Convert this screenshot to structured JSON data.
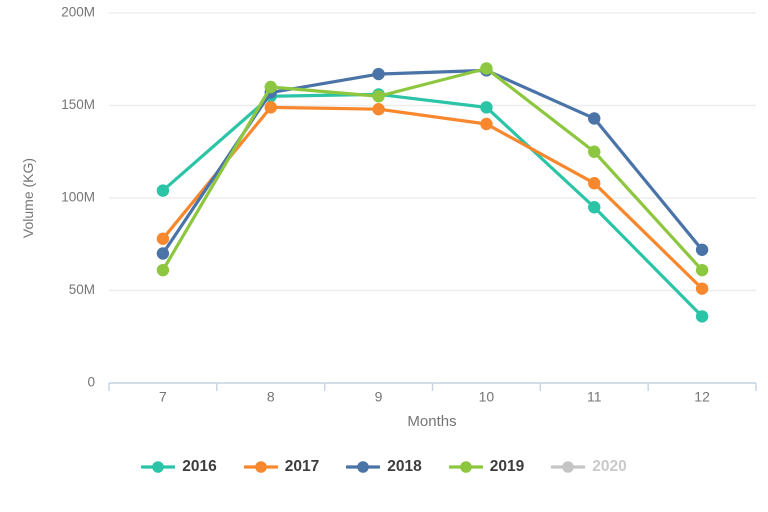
{
  "chart_data": {
    "type": "line",
    "title": "",
    "xlabel": "Months",
    "ylabel": "Volume (KG)",
    "categories": [
      "7",
      "8",
      "9",
      "10",
      "11",
      "12"
    ],
    "unit": "M",
    "ylim_millions": [
      0,
      200
    ],
    "grid": true,
    "legend_position": "bottom",
    "y_ticks": [
      {
        "value": 0,
        "label": "0"
      },
      {
        "value": 50,
        "label": "50M"
      },
      {
        "value": 100,
        "label": "100M"
      },
      {
        "value": 150,
        "label": "150M"
      },
      {
        "value": 200,
        "label": "200M"
      }
    ],
    "series": [
      {
        "name": "2016",
        "color": "#2cc4a6",
        "enabled": true,
        "values_millions": [
          104,
          155,
          156,
          149,
          95,
          36
        ]
      },
      {
        "name": "2017",
        "color": "#f8882e",
        "enabled": true,
        "values_millions": [
          78,
          149,
          148,
          140,
          108,
          51
        ]
      },
      {
        "name": "2018",
        "color": "#4a74a8",
        "enabled": true,
        "values_millions": [
          70,
          157,
          167,
          169,
          143,
          72
        ]
      },
      {
        "name": "2019",
        "color": "#8dc63f",
        "enabled": true,
        "values_millions": [
          61,
          160,
          155,
          170,
          125,
          61
        ]
      },
      {
        "name": "2020",
        "color": "#c5c5c5",
        "enabled": false,
        "values_millions": []
      }
    ],
    "styles": {
      "axis_color": "#c5d3e4",
      "grid_color": "#ededed",
      "tick_text_color": "#757575",
      "legend_text_color": "#3d3d3d",
      "disabled_text_color": "#c9c9c9"
    }
  }
}
